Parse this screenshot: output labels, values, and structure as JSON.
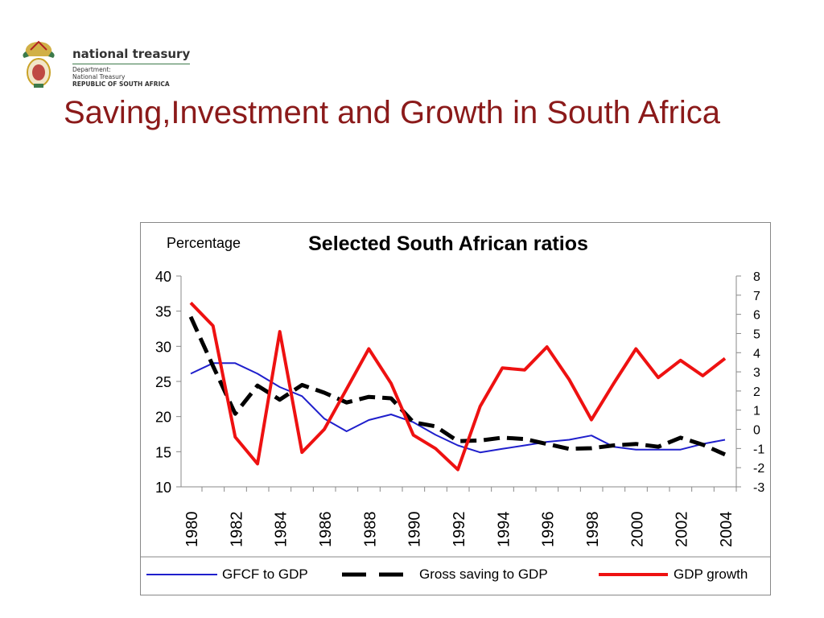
{
  "header": {
    "logo": {
      "name": "national treasury",
      "line1": "Department:",
      "line2": "National Treasury",
      "line3": "REPUBLIC OF SOUTH AFRICA",
      "emblem_icon": "coat-of-arms-icon",
      "colors": {
        "gold": "#c9a227",
        "green": "#3c7a4a",
        "red": "#b22222"
      }
    }
  },
  "slide": {
    "title": "Saving,Investment and Growth in South Africa",
    "title_color": "#8b1a1a"
  },
  "chart_data": {
    "type": "line",
    "title": "Selected South African ratios",
    "ylabel": "Percentage",
    "ylim": [
      10,
      40
    ],
    "y_ticks": [
      10,
      15,
      20,
      25,
      30,
      35,
      40
    ],
    "y2lim": [
      -3,
      8
    ],
    "y2_ticks": [
      -3,
      -2,
      -1,
      0,
      1,
      2,
      3,
      4,
      5,
      6,
      7,
      8
    ],
    "x": [
      1980,
      1981,
      1982,
      1983,
      1984,
      1985,
      1986,
      1987,
      1988,
      1989,
      1990,
      1991,
      1992,
      1993,
      1994,
      1995,
      1996,
      1997,
      1998,
      1999,
      2000,
      2001,
      2002,
      2003,
      2004
    ],
    "x_tick_labels": [
      "1980",
      "1982",
      "1984",
      "1986",
      "1988",
      "1990",
      "1992",
      "1994",
      "1996",
      "1998",
      "2000",
      "2002",
      "2004"
    ],
    "grid": false,
    "legend_position": "bottom",
    "series": [
      {
        "name": "GFCF to GDP",
        "axis": "left",
        "color": "#1f1fcc",
        "style": "solid",
        "width": 2,
        "values": [
          26.1,
          27.6,
          27.6,
          26.1,
          24.2,
          22.9,
          19.7,
          17.9,
          19.5,
          20.3,
          19.2,
          17.4,
          15.9,
          14.9,
          15.4,
          15.9,
          16.4,
          16.7,
          17.3,
          15.7,
          15.3,
          15.3,
          15.3,
          16.1,
          16.7
        ]
      },
      {
        "name": "Gross saving to GDP",
        "axis": "left",
        "color": "#000000",
        "style": "dashed",
        "width": 5,
        "values": [
          34.2,
          27.2,
          20.4,
          24.4,
          22.4,
          24.5,
          23.4,
          22.0,
          22.8,
          22.6,
          19.2,
          18.6,
          16.5,
          16.6,
          17.0,
          16.8,
          16.1,
          15.4,
          15.5,
          15.9,
          16.1,
          15.7,
          17.0,
          16.0,
          14.6
        ]
      },
      {
        "name": "GDP growth",
        "axis": "right",
        "color": "#ee1111",
        "style": "solid",
        "width": 4,
        "values": [
          6.6,
          5.4,
          -0.4,
          -1.8,
          5.1,
          -1.2,
          0.0,
          2.1,
          4.2,
          2.4,
          -0.3,
          -1.0,
          -2.1,
          1.2,
          3.2,
          3.1,
          4.3,
          2.6,
          0.5,
          2.4,
          4.2,
          2.7,
          3.6,
          2.8,
          3.7
        ]
      }
    ]
  }
}
